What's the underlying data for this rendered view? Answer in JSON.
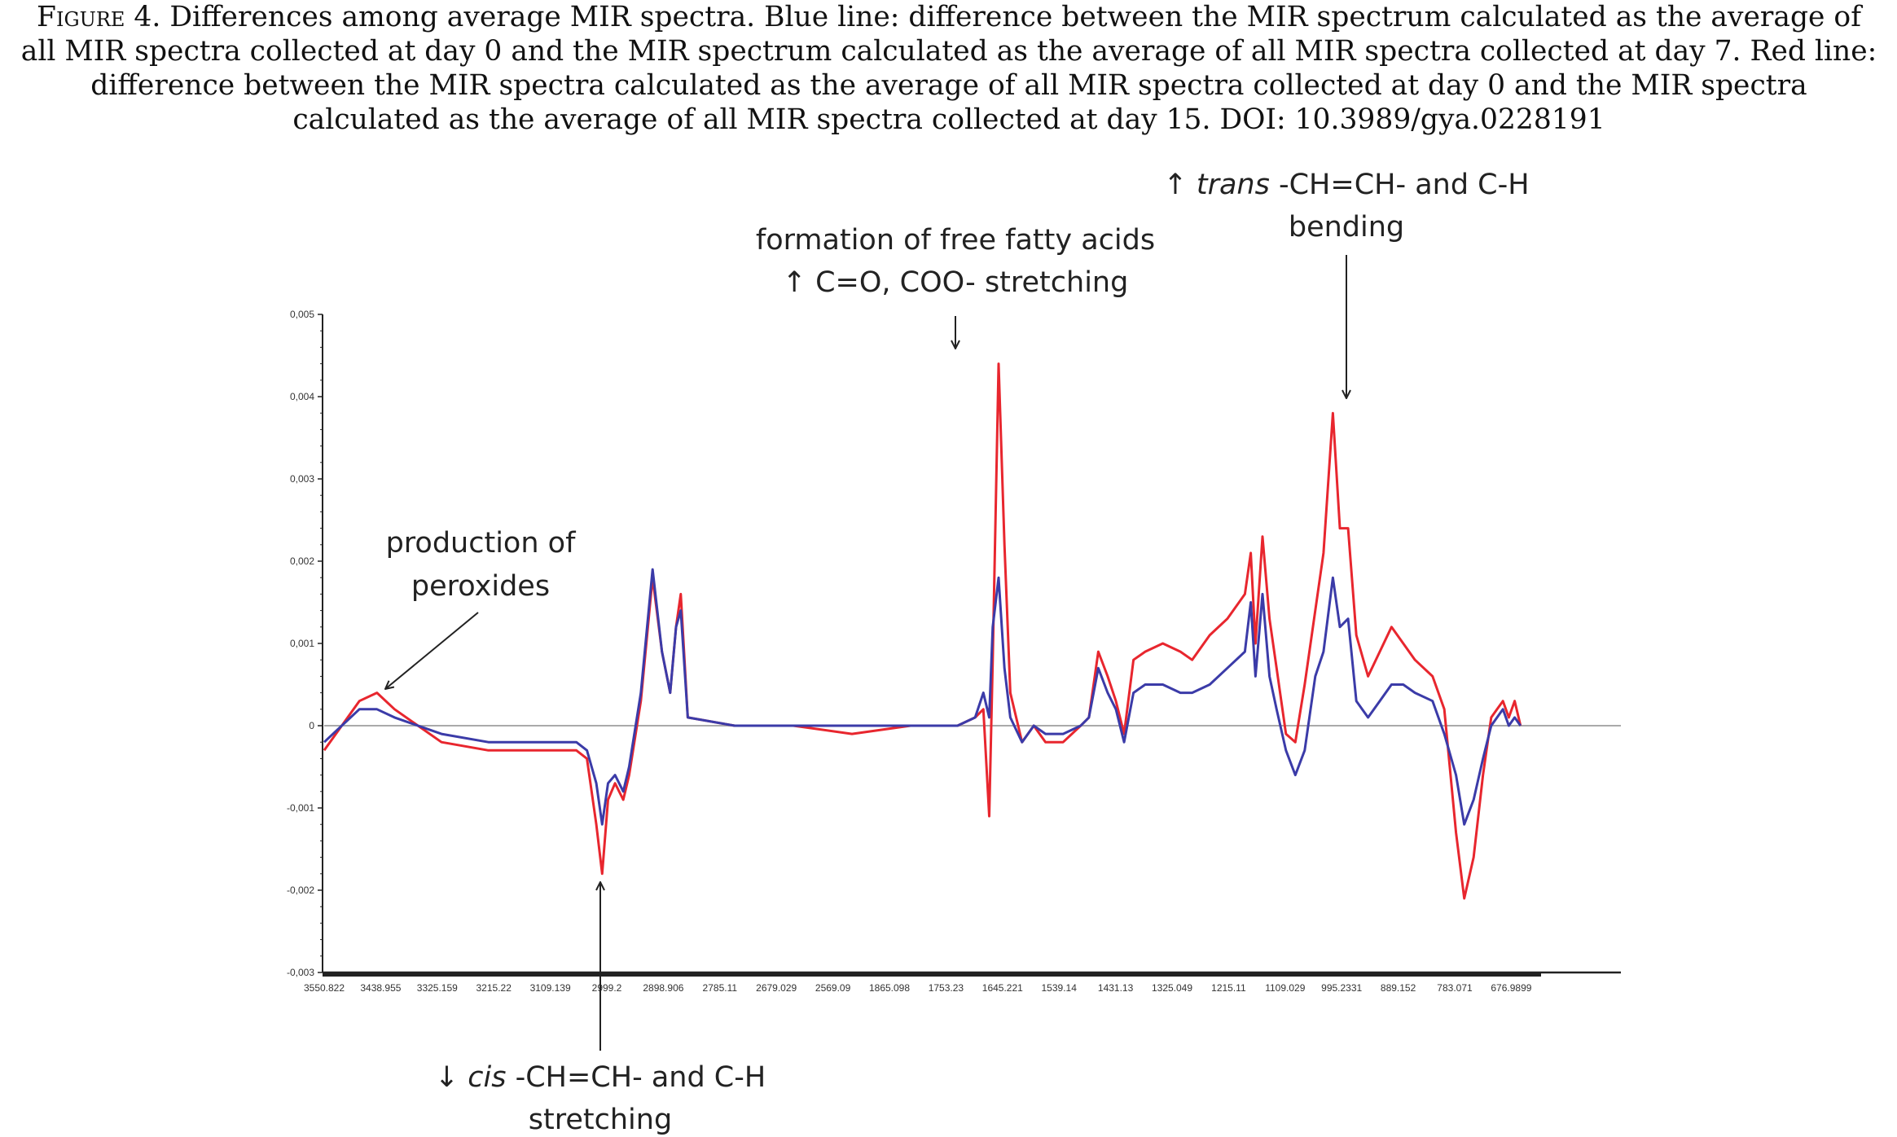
{
  "caption": {
    "label": "Figure",
    "number": "4.",
    "text": "Differences among average MIR spectra. Blue line: difference between the MIR spectrum calculated as the average of all MIR spectra collected at day 0 and the MIR spectrum calculated as the average of all MIR spectra collected at day 7. Red line: difference between the MIR spectra calculated as the average of all MIR spectra collected at day 0 and the MIR spectra calculated as the average of all MIR spectra collected at day 15. DOI: 10.3989/gya.0228191"
  },
  "colors": {
    "blue": "#3b3ba8",
    "red": "#e8262e",
    "zero": "#aaaaaa",
    "axis": "#222222"
  },
  "chart_data": {
    "type": "line",
    "title": "",
    "xlabel": "",
    "ylabel": "",
    "ylim": [
      -0.003,
      0.005
    ],
    "y_ticks": [
      0.005,
      0.004,
      0.003,
      0.002,
      0.001,
      0,
      -0.001,
      -0.002,
      -0.003
    ],
    "y_tick_labels": [
      "0,005",
      "0,004",
      "0,003",
      "0,002",
      "0,001",
      "0",
      "-0,001",
      "-0,002",
      "-0,003"
    ],
    "x_tick_labels": [
      "3550.822",
      "3438.955",
      "3325.159",
      "3215.22",
      "3109.139",
      "2999.2",
      "2898.906",
      "2785.11",
      "2679.029",
      "2569.09",
      "1865.098",
      "1753.23",
      "1645.221",
      "1539.14",
      "1431.13",
      "1325.049",
      "1215.11",
      "1109.029",
      "995.2331",
      "889.152",
      "783.071",
      "676.9899"
    ],
    "x_tick_positions": [
      0,
      0.05,
      0.1,
      0.15,
      0.2,
      0.25,
      0.3,
      0.35,
      0.4,
      0.45,
      0.5,
      0.55,
      0.6,
      0.65,
      0.7,
      0.75,
      0.8,
      0.85,
      0.9,
      0.95,
      1.0,
      1.05
    ],
    "grid": false,
    "series": [
      {
        "color": "blue",
        "points": [
          [
            0,
            -0.0002
          ],
          [
            0.015,
            0.0
          ],
          [
            0.03,
            0.0002
          ],
          [
            0.045,
            0.0002
          ],
          [
            0.06,
            0.0001
          ],
          [
            0.08,
            0.0
          ],
          [
            0.1,
            -0.0001
          ],
          [
            0.14,
            -0.0002
          ],
          [
            0.18,
            -0.0002
          ],
          [
            0.215,
            -0.0002
          ],
          [
            0.224,
            -0.0003
          ],
          [
            0.232,
            -0.0007
          ],
          [
            0.237,
            -0.0012
          ],
          [
            0.242,
            -0.0007
          ],
          [
            0.248,
            -0.0006
          ],
          [
            0.255,
            -0.0008
          ],
          [
            0.26,
            -0.0005
          ],
          [
            0.27,
            0.0004
          ],
          [
            0.28,
            0.0019
          ],
          [
            0.288,
            0.0009
          ],
          [
            0.295,
            0.0004
          ],
          [
            0.3,
            0.0012
          ],
          [
            0.304,
            0.0014
          ],
          [
            0.31,
            0.0001
          ],
          [
            0.35,
            0.0
          ],
          [
            0.4,
            0.0
          ],
          [
            0.45,
            0.0
          ],
          [
            0.5,
            0.0
          ],
          [
            0.54,
            0.0
          ],
          [
            0.555,
            0.0001
          ],
          [
            0.562,
            0.0004
          ],
          [
            0.567,
            0.0001
          ],
          [
            0.57,
            0.0012
          ],
          [
            0.575,
            0.0018
          ],
          [
            0.58,
            0.0007
          ],
          [
            0.585,
            0.0001
          ],
          [
            0.595,
            -0.0002
          ],
          [
            0.605,
            0.0
          ],
          [
            0.615,
            -0.0001
          ],
          [
            0.63,
            -0.0001
          ],
          [
            0.645,
            0.0
          ],
          [
            0.652,
            0.0001
          ],
          [
            0.66,
            0.0007
          ],
          [
            0.668,
            0.0004
          ],
          [
            0.675,
            0.0002
          ],
          [
            0.682,
            -0.0002
          ],
          [
            0.69,
            0.0004
          ],
          [
            0.7,
            0.0005
          ],
          [
            0.715,
            0.0005
          ],
          [
            0.73,
            0.0004
          ],
          [
            0.74,
            0.0004
          ],
          [
            0.755,
            0.0005
          ],
          [
            0.77,
            0.0007
          ],
          [
            0.785,
            0.0009
          ],
          [
            0.79,
            0.0015
          ],
          [
            0.794,
            0.0006
          ],
          [
            0.8,
            0.0016
          ],
          [
            0.806,
            0.0006
          ],
          [
            0.812,
            0.0002
          ],
          [
            0.82,
            -0.0003
          ],
          [
            0.828,
            -0.0006
          ],
          [
            0.836,
            -0.0003
          ],
          [
            0.845,
            0.0006
          ],
          [
            0.852,
            0.0009
          ],
          [
            0.86,
            0.0018
          ],
          [
            0.866,
            0.0012
          ],
          [
            0.873,
            0.0013
          ],
          [
            0.88,
            0.0003
          ],
          [
            0.89,
            0.0001
          ],
          [
            0.9,
            0.0003
          ],
          [
            0.91,
            0.0005
          ],
          [
            0.92,
            0.0005
          ],
          [
            0.93,
            0.0004
          ],
          [
            0.945,
            0.0003
          ],
          [
            0.955,
            -0.0001
          ],
          [
            0.965,
            -0.0006
          ],
          [
            0.972,
            -0.0012
          ],
          [
            0.98,
            -0.0009
          ],
          [
            0.988,
            -0.0004
          ],
          [
            0.995,
            0.0
          ],
          [
            1.0,
            0.0001
          ],
          [
            1.005,
            0.0002
          ],
          [
            1.01,
            0.0
          ],
          [
            1.015,
            0.0001
          ],
          [
            1.02,
            0.0
          ]
        ]
      },
      {
        "color": "red",
        "points": [
          [
            0,
            -0.0003
          ],
          [
            0.015,
            0.0
          ],
          [
            0.03,
            0.0003
          ],
          [
            0.045,
            0.0004
          ],
          [
            0.06,
            0.0002
          ],
          [
            0.08,
            0.0
          ],
          [
            0.1,
            -0.0002
          ],
          [
            0.14,
            -0.0003
          ],
          [
            0.18,
            -0.0003
          ],
          [
            0.215,
            -0.0003
          ],
          [
            0.224,
            -0.0004
          ],
          [
            0.232,
            -0.0012
          ],
          [
            0.237,
            -0.0018
          ],
          [
            0.242,
            -0.0009
          ],
          [
            0.248,
            -0.0007
          ],
          [
            0.255,
            -0.0009
          ],
          [
            0.26,
            -0.0006
          ],
          [
            0.27,
            0.0003
          ],
          [
            0.28,
            0.0018
          ],
          [
            0.288,
            0.0009
          ],
          [
            0.295,
            0.0004
          ],
          [
            0.3,
            0.0012
          ],
          [
            0.304,
            0.0016
          ],
          [
            0.31,
            0.0001
          ],
          [
            0.35,
            0.0
          ],
          [
            0.4,
            0.0
          ],
          [
            0.45,
            -0.0001
          ],
          [
            0.5,
            0.0
          ],
          [
            0.54,
            0.0
          ],
          [
            0.555,
            0.0001
          ],
          [
            0.562,
            0.0002
          ],
          [
            0.567,
            -0.0011
          ],
          [
            0.57,
            0.0008
          ],
          [
            0.575,
            0.0044
          ],
          [
            0.58,
            0.0022
          ],
          [
            0.585,
            0.0004
          ],
          [
            0.595,
            -0.0002
          ],
          [
            0.605,
            0.0
          ],
          [
            0.615,
            -0.0002
          ],
          [
            0.63,
            -0.0002
          ],
          [
            0.645,
            0.0
          ],
          [
            0.652,
            0.0001
          ],
          [
            0.66,
            0.0009
          ],
          [
            0.668,
            0.0006
          ],
          [
            0.675,
            0.0003
          ],
          [
            0.682,
            -0.0001
          ],
          [
            0.69,
            0.0008
          ],
          [
            0.7,
            0.0009
          ],
          [
            0.715,
            0.001
          ],
          [
            0.73,
            0.0009
          ],
          [
            0.74,
            0.0008
          ],
          [
            0.755,
            0.0011
          ],
          [
            0.77,
            0.0013
          ],
          [
            0.785,
            0.0016
          ],
          [
            0.79,
            0.0021
          ],
          [
            0.794,
            0.001
          ],
          [
            0.8,
            0.0023
          ],
          [
            0.806,
            0.0013
          ],
          [
            0.812,
            0.0007
          ],
          [
            0.82,
            -0.0001
          ],
          [
            0.828,
            -0.0002
          ],
          [
            0.836,
            0.0005
          ],
          [
            0.845,
            0.0014
          ],
          [
            0.852,
            0.0021
          ],
          [
            0.86,
            0.0038
          ],
          [
            0.866,
            0.0024
          ],
          [
            0.873,
            0.0024
          ],
          [
            0.88,
            0.0011
          ],
          [
            0.89,
            0.0006
          ],
          [
            0.9,
            0.0009
          ],
          [
            0.91,
            0.0012
          ],
          [
            0.92,
            0.001
          ],
          [
            0.93,
            0.0008
          ],
          [
            0.945,
            0.0006
          ],
          [
            0.955,
            0.0002
          ],
          [
            0.965,
            -0.0013
          ],
          [
            0.972,
            -0.0021
          ],
          [
            0.98,
            -0.0016
          ],
          [
            0.988,
            -0.0006
          ],
          [
            0.995,
            0.0001
          ],
          [
            1.0,
            0.0002
          ],
          [
            1.005,
            0.0003
          ],
          [
            1.01,
            0.0001
          ],
          [
            1.015,
            0.0003
          ],
          [
            1.02,
            0.0
          ]
        ]
      }
    ]
  },
  "annotations": {
    "peroxides": {
      "line1": "production of",
      "line2": "peroxides"
    },
    "ffa": {
      "line1": "formation of free fatty acids",
      "line2": "↑ C=O, COO- stretching"
    },
    "trans": {
      "prefix": "↑ ",
      "italic": "trans",
      "rest": " -CH=CH- and C-H",
      "line2": "bending"
    },
    "cis": {
      "prefix": "↓ ",
      "italic": "cis",
      "rest": " -CH=CH- and C-H",
      "line2": "stretching"
    }
  }
}
